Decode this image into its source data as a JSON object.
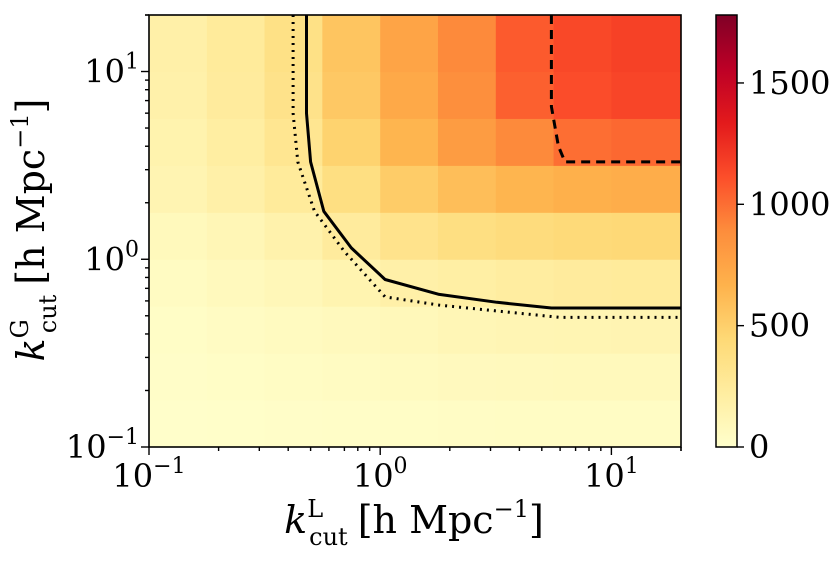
{
  "chart_data": {
    "type": "heatmap",
    "title": "",
    "xlabel": {
      "base": "k",
      "sup": "L",
      "sub": "cut",
      "unit": "[h Mpc",
      "exp": "−1",
      "close": "]"
    },
    "ylabel": {
      "base": "k",
      "sup": "G",
      "sub": "cut",
      "unit": "[h Mpc",
      "exp": "−1",
      "close": "]"
    },
    "xscale": "log",
    "yscale": "log",
    "xlim": [
      0.1,
      20
    ],
    "ylim": [
      0.1,
      20
    ],
    "x_ticks": [
      {
        "value": 0.1,
        "base": "10",
        "exp": "−1"
      },
      {
        "value": 1,
        "base": "10",
        "exp": "0"
      },
      {
        "value": 10,
        "base": "10",
        "exp": "1"
      }
    ],
    "y_ticks": [
      {
        "value": 0.1,
        "base": "10",
        "exp": "−1"
      },
      {
        "value": 1,
        "base": "10",
        "exp": "0"
      },
      {
        "value": 10,
        "base": "10",
        "exp": "1"
      }
    ],
    "colorbar": {
      "min": 0,
      "max": 1780,
      "ticks": [
        {
          "value": 0,
          "label": "0"
        },
        {
          "value": 500,
          "label": "500"
        },
        {
          "value": 1000,
          "label": "1000"
        },
        {
          "value": 1500,
          "label": "1500"
        }
      ],
      "colormap": "YlOrRd",
      "stops": [
        "#ffffcc",
        "#ffeda0",
        "#fed976",
        "#feb24c",
        "#fd8d3c",
        "#fc4e2a",
        "#e31a1c",
        "#bd0026",
        "#800026"
      ]
    },
    "grid_x_edges": [
      0.1,
      0.178,
      0.316,
      0.562,
      1.0,
      1.778,
      3.162,
      5.623,
      10.0,
      20.0
    ],
    "grid_y_edges": [
      0.1,
      0.178,
      0.316,
      0.562,
      1.0,
      1.778,
      3.162,
      5.623,
      10.0,
      20.0
    ],
    "values": [
      [
        10,
        15,
        20,
        25,
        30,
        35,
        38,
        40,
        42
      ],
      [
        20,
        30,
        40,
        50,
        60,
        70,
        75,
        80,
        80
      ],
      [
        30,
        45,
        60,
        75,
        90,
        110,
        120,
        125,
        130
      ],
      [
        50,
        75,
        100,
        140,
        180,
        200,
        220,
        240,
        250
      ],
      [
        80,
        110,
        160,
        240,
        330,
        380,
        410,
        430,
        440
      ],
      [
        130,
        180,
        250,
        380,
        520,
        600,
        650,
        680,
        700
      ],
      [
        150,
        210,
        300,
        480,
        650,
        800,
        900,
        1000,
        1020
      ],
      [
        170,
        240,
        340,
        540,
        720,
        880,
        1050,
        1120,
        1150
      ],
      [
        180,
        250,
        360,
        560,
        750,
        900,
        1070,
        1140,
        1170
      ]
    ],
    "contours": [
      {
        "style": "solid",
        "points": [
          [
            0.48,
            20
          ],
          [
            0.48,
            6.0
          ],
          [
            0.5,
            3.3
          ],
          [
            0.57,
            1.8
          ],
          [
            0.75,
            1.15
          ],
          [
            1.05,
            0.78
          ],
          [
            1.8,
            0.65
          ],
          [
            3.2,
            0.59
          ],
          [
            5.5,
            0.55
          ],
          [
            20,
            0.55
          ]
        ]
      },
      {
        "style": "dotted",
        "points": [
          [
            0.42,
            20
          ],
          [
            0.42,
            6.0
          ],
          [
            0.44,
            3.3
          ],
          [
            0.52,
            1.8
          ],
          [
            0.7,
            1.1
          ],
          [
            1.05,
            0.63
          ],
          [
            1.8,
            0.57
          ],
          [
            3.2,
            0.53
          ],
          [
            6.0,
            0.49
          ],
          [
            20,
            0.49
          ]
        ]
      },
      {
        "style": "dashed",
        "points": [
          [
            5.5,
            20
          ],
          [
            5.5,
            6.5
          ],
          [
            5.9,
            4.0
          ],
          [
            6.3,
            3.3
          ],
          [
            20,
            3.3
          ]
        ]
      }
    ]
  }
}
